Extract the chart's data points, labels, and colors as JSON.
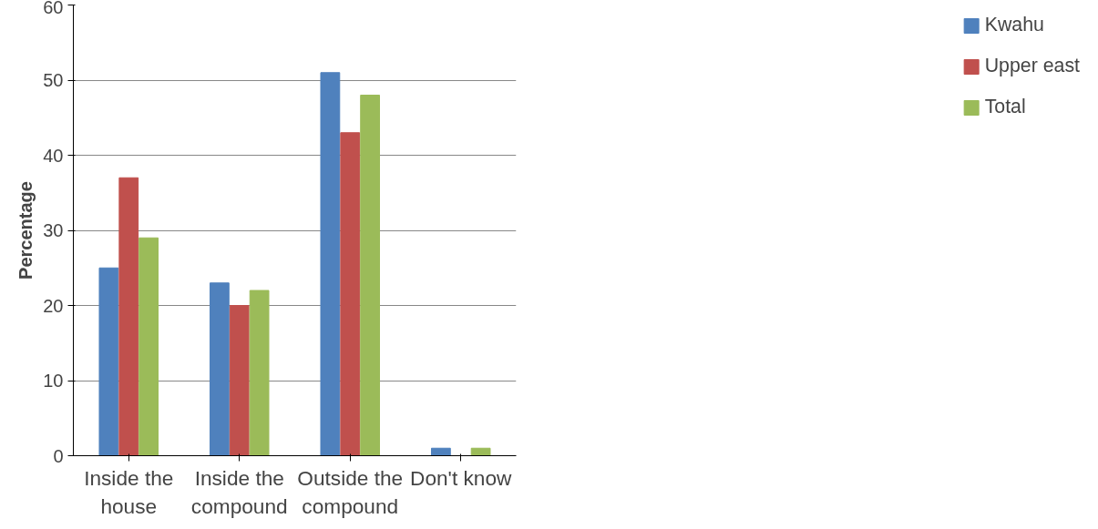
{
  "chart_data": {
    "type": "bar",
    "ylabel": "Percentage",
    "categories": [
      "Inside the house",
      "Inside the compound",
      "Outside the compound",
      "Don't know"
    ],
    "series": [
      {
        "name": "Kwahu",
        "color": "#4f81bd",
        "values": [
          25,
          23,
          51,
          1
        ]
      },
      {
        "name": "Upper east",
        "color": "#c0504d",
        "values": [
          37,
          20,
          43,
          0
        ]
      },
      {
        "name": "Total",
        "color": "#9bbb59",
        "values": [
          29,
          22,
          48,
          1
        ]
      }
    ],
    "ylim": [
      0,
      60
    ],
    "yticks": [
      0,
      10,
      20,
      30,
      40,
      50,
      60
    ],
    "grid": "y",
    "legend": "right"
  }
}
